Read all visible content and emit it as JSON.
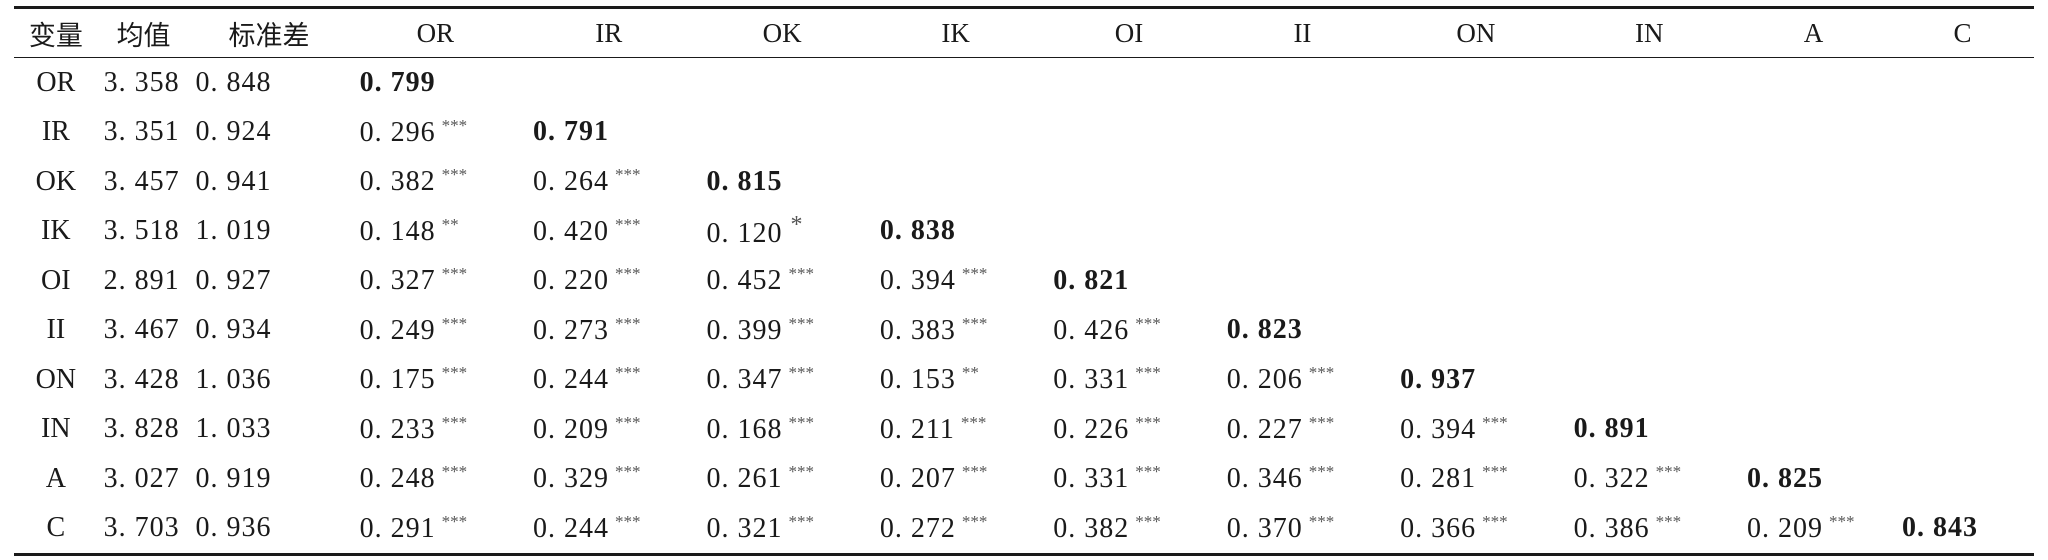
{
  "table": {
    "headers": [
      "变量",
      "均值",
      "标准差",
      "OR",
      "IR",
      "OK",
      "IK",
      "OI",
      "II",
      "ON",
      "IN",
      "A",
      "C"
    ],
    "rows": [
      {
        "var": "OR",
        "mean": "3. 358",
        "sd": "0. 848",
        "corr": [
          {
            "v": "0. 799",
            "s": "",
            "d": true
          }
        ]
      },
      {
        "var": "IR",
        "mean": "3. 351",
        "sd": "0. 924",
        "corr": [
          {
            "v": "0. 296",
            "s": "***"
          },
          {
            "v": "0. 791",
            "s": "",
            "d": true
          }
        ]
      },
      {
        "var": "OK",
        "mean": "3. 457",
        "sd": "0. 941",
        "corr": [
          {
            "v": "0. 382",
            "s": "***"
          },
          {
            "v": "0. 264",
            "s": "***"
          },
          {
            "v": "0. 815",
            "s": "",
            "d": true
          }
        ]
      },
      {
        "var": "IK",
        "mean": "3. 518",
        "sd": "1. 019",
        "corr": [
          {
            "v": "0. 148",
            "s": "**"
          },
          {
            "v": "0. 420",
            "s": "***"
          },
          {
            "v": "0. 120",
            "s": "*"
          },
          {
            "v": "0. 838",
            "s": "",
            "d": true
          }
        ]
      },
      {
        "var": "OI",
        "mean": "2. 891",
        "sd": "0. 927",
        "corr": [
          {
            "v": "0. 327",
            "s": "***"
          },
          {
            "v": "0. 220",
            "s": "***"
          },
          {
            "v": "0. 452",
            "s": "***"
          },
          {
            "v": "0. 394",
            "s": "***"
          },
          {
            "v": "0. 821",
            "s": "",
            "d": true
          }
        ]
      },
      {
        "var": "II",
        "mean": "3. 467",
        "sd": "0. 934",
        "corr": [
          {
            "v": "0. 249",
            "s": "***"
          },
          {
            "v": "0. 273",
            "s": "***"
          },
          {
            "v": "0. 399",
            "s": "***"
          },
          {
            "v": "0. 383",
            "s": "***"
          },
          {
            "v": "0. 426",
            "s": "***"
          },
          {
            "v": "0. 823",
            "s": "",
            "d": true
          }
        ]
      },
      {
        "var": "ON",
        "mean": "3. 428",
        "sd": "1. 036",
        "corr": [
          {
            "v": "0. 175",
            "s": "***"
          },
          {
            "v": "0. 244",
            "s": "***"
          },
          {
            "v": "0. 347",
            "s": "***"
          },
          {
            "v": "0. 153",
            "s": "**"
          },
          {
            "v": "0. 331",
            "s": "***"
          },
          {
            "v": "0. 206",
            "s": "***"
          },
          {
            "v": "0. 937",
            "s": "",
            "d": true
          }
        ]
      },
      {
        "var": "IN",
        "mean": "3. 828",
        "sd": "1. 033",
        "corr": [
          {
            "v": "0. 233",
            "s": "***"
          },
          {
            "v": "0. 209",
            "s": "***"
          },
          {
            "v": "0. 168",
            "s": "***"
          },
          {
            "v": "0. 211",
            "s": "***"
          },
          {
            "v": "0. 226",
            "s": "***"
          },
          {
            "v": "0. 227",
            "s": "***"
          },
          {
            "v": "0. 394",
            "s": "***"
          },
          {
            "v": "0. 891",
            "s": "",
            "d": true
          }
        ]
      },
      {
        "var": "A",
        "mean": "3. 027",
        "sd": "0. 919",
        "corr": [
          {
            "v": "0. 248",
            "s": "***"
          },
          {
            "v": "0. 329",
            "s": "***"
          },
          {
            "v": "0. 261",
            "s": "***"
          },
          {
            "v": "0. 207",
            "s": "***"
          },
          {
            "v": "0. 331",
            "s": "***"
          },
          {
            "v": "0. 346",
            "s": "***"
          },
          {
            "v": "0. 281",
            "s": "***"
          },
          {
            "v": "0. 322",
            "s": "***"
          },
          {
            "v": "0. 825",
            "s": "",
            "d": true
          }
        ]
      },
      {
        "var": "C",
        "mean": "3. 703",
        "sd": "0. 936",
        "corr": [
          {
            "v": "0. 291",
            "s": "***"
          },
          {
            "v": "0. 244",
            "s": "***"
          },
          {
            "v": "0. 321",
            "s": "***"
          },
          {
            "v": "0. 272",
            "s": "***"
          },
          {
            "v": "0. 382",
            "s": "***"
          },
          {
            "v": "0. 370",
            "s": "***"
          },
          {
            "v": "0. 366",
            "s": "***"
          },
          {
            "v": "0. 386",
            "s": "***"
          },
          {
            "v": "0. 209",
            "s": "***"
          },
          {
            "v": "0. 843",
            "s": "",
            "d": true
          }
        ]
      }
    ]
  }
}
